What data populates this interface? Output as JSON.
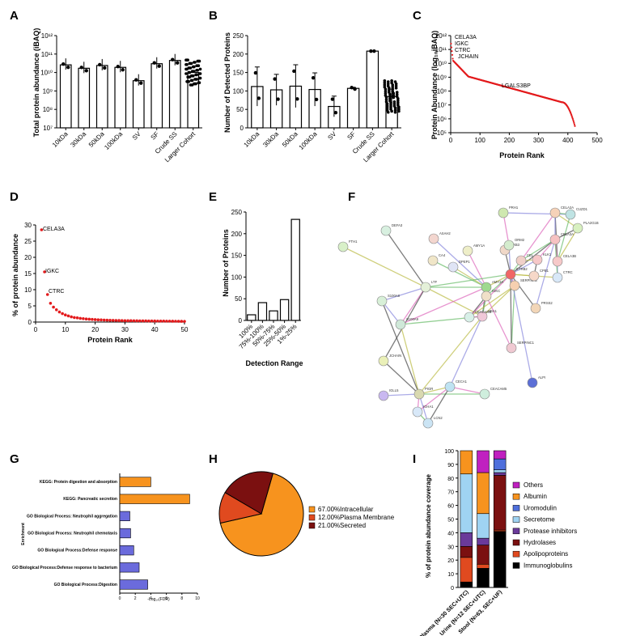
{
  "panels": {
    "A": {
      "label": "A",
      "type": "bar",
      "ylabel": "Total protein abundance (iBAQ)",
      "yscale": "log",
      "ylim": [
        10000000.0,
        1000000000000.0
      ],
      "yticks": [
        "10⁷",
        "10⁸",
        "10⁹",
        "10¹⁰",
        "10¹¹",
        "10¹²"
      ],
      "categories": [
        "10kDa",
        "30kDa",
        "50kDa",
        "100kDa",
        "SV",
        "SF",
        "Crude SS",
        "Larger Cohort"
      ],
      "values": [
        26000000000.0,
        17000000000.0,
        24000000000.0,
        19000000000.0,
        3600000000.0,
        30000000000.0,
        45000000000.0,
        10000000000.0
      ]
    },
    "B": {
      "label": "B",
      "type": "bar",
      "ylabel": "Number of Detected Proteins",
      "ylim": [
        0,
        250
      ],
      "yticks": [
        "0",
        "50",
        "100",
        "150",
        "200",
        "250"
      ],
      "categories": [
        "10kDa",
        "30kDa",
        "50kDa",
        "100kDa",
        "SV",
        "SF",
        "Crude SS",
        "Larger Cohort"
      ],
      "values": [
        112,
        103,
        113,
        104,
        58,
        107,
        208,
        85
      ],
      "errors": [
        53,
        42,
        58,
        45,
        28,
        3,
        0,
        20
      ]
    },
    "C": {
      "label": "C",
      "type": "scatter",
      "xlabel": "Protein Rank",
      "ylabel": "Protein Abundance (log₁₀iBAQ)",
      "xlim": [
        0,
        500
      ],
      "ylim": [
        100000.0,
        1000000000000.0
      ],
      "xticks": [
        "0",
        "100",
        "200",
        "300",
        "400",
        "500"
      ],
      "yticks": [
        "10⁵",
        "10⁶",
        "10⁷",
        "10⁸",
        "10⁹",
        "10¹⁰",
        "10¹¹",
        "10¹²"
      ],
      "annotations": [
        "CELA3A",
        "IGKC",
        "CTRC",
        "JCHAIN",
        "LGALS3BP"
      ]
    },
    "D": {
      "label": "D",
      "type": "scatter",
      "xlabel": "Protein Rank",
      "ylabel": "% of protein abundance",
      "xlim": [
        0,
        50
      ],
      "ylim": [
        0,
        30
      ],
      "xticks": [
        "0",
        "10",
        "20",
        "30",
        "40",
        "50"
      ],
      "yticks": [
        "0",
        "5",
        "10",
        "15",
        "20",
        "25",
        "30"
      ],
      "annotations": [
        "CELA3A",
        "IGKC",
        "CTRC"
      ],
      "x": [
        2,
        3,
        4,
        5,
        6,
        7,
        8,
        9,
        10,
        11,
        12,
        13,
        14,
        15,
        16,
        17,
        18,
        19,
        20,
        21,
        22,
        23,
        24,
        25,
        26,
        27,
        28,
        29,
        30,
        31,
        32,
        33,
        34,
        35,
        36,
        37,
        38,
        39,
        40,
        41,
        42,
        43,
        44,
        45,
        46,
        47,
        48,
        49,
        50
      ],
      "y": [
        28.5,
        15.5,
        8.5,
        5.8,
        4.6,
        3.8,
        3.1,
        2.6,
        2.2,
        1.9,
        1.6,
        1.4,
        1.3,
        1.15,
        1.05,
        0.95,
        0.88,
        0.82,
        0.76,
        0.7,
        0.66,
        0.62,
        0.58,
        0.55,
        0.52,
        0.5,
        0.48,
        0.46,
        0.44,
        0.42,
        0.41,
        0.4,
        0.38,
        0.37,
        0.36,
        0.35,
        0.34,
        0.33,
        0.32,
        0.31,
        0.3,
        0.29,
        0.28,
        0.27,
        0.26,
        0.25,
        0.24,
        0.23,
        0.22
      ]
    },
    "E": {
      "label": "E",
      "type": "bar",
      "xlabel": "Detection Range",
      "ylabel": "Number of Proteins",
      "ylim": [
        0,
        250
      ],
      "yticks": [
        "0",
        "50",
        "100",
        "150",
        "200",
        "250"
      ],
      "categories": [
        "100%",
        "75%-100%",
        "50%-75%",
        "25%-50%",
        "1%-25%"
      ],
      "values": [
        13,
        41,
        22,
        48,
        233
      ]
    },
    "F": {
      "label": "F",
      "nodes": [
        "PRH1",
        "CELA2A",
        "CUZD1",
        "PLA2G1B",
        "CELA3B",
        "CTRC",
        "PRSS2",
        "SERPINA3",
        "SERPINC1",
        "ALPI",
        "CEACAM5",
        "CECA1",
        "PIGR",
        "LCN2",
        "FTH1",
        "DEFA3",
        "ASAH2",
        "AMY1A",
        "CA4",
        "DPEP1",
        "PRB3",
        "LTF",
        "S100A8",
        "S100A9",
        "AMY2A",
        "ORM2",
        "HBA1",
        "JCHAIN",
        "IGLL5",
        "IGHA1",
        "CEL",
        "CPB1",
        "CELA3A",
        "KLK1",
        "CTRB2",
        "CEACAM6",
        "IGKC"
      ]
    },
    "G": {
      "label": "G",
      "type": "bar",
      "xlabel": "-Log₁₀(FDR)",
      "ylabel": "Enrichment",
      "xlim": [
        0,
        10
      ],
      "xticks": [
        "0",
        "2",
        "4",
        "6",
        "8",
        "10"
      ],
      "categories": [
        "KEGG: Protein digestion and absorption",
        "KEGG: Pancreatic secretion",
        "GO Biological Process: Neutrophil aggregation",
        "GO Biological Process: Neutrophil chemotaxis",
        "GO Biological Process:Defense response",
        "GO Biological Process:Defense response to bacterium",
        "GO Biological Process:Digestion"
      ],
      "values": [
        4.0,
        9.0,
        1.3,
        1.4,
        1.8,
        2.5,
        3.6
      ],
      "colors": [
        "#f7931e",
        "#f7931e",
        "#6b6bdc",
        "#6b6bdc",
        "#6b6bdc",
        "#6b6bdc",
        "#6b6bdc"
      ]
    },
    "H": {
      "label": "H",
      "type": "pie",
      "slices": [
        {
          "pct": "67.00%",
          "name": "Intracellular",
          "value": 67.0,
          "color": "#f7931e"
        },
        {
          "pct": "12.00%",
          "name": "Plasma Membrane",
          "value": 12.0,
          "color": "#e04a1f"
        },
        {
          "pct": "21.00%",
          "name": "Secreted",
          "value": 21.0,
          "color": "#7b1010"
        }
      ]
    },
    "I": {
      "label": "I",
      "type": "bar",
      "ylabel": "% of protein abundance coverage",
      "ylim": [
        0,
        100
      ],
      "yticks": [
        "0",
        "10",
        "20",
        "30",
        "40",
        "50",
        "60",
        "70",
        "80",
        "90",
        "100"
      ],
      "categories": [
        "Plasma (N=30 SEC+UTC)",
        "Urine (N=12 SEC+UTC)",
        "Stool (N=63, SEC+UF)"
      ],
      "legend": [
        "Others",
        "Albumin",
        "Uromodulin",
        "Secretome",
        "Protease inhibitors",
        "Hydrolases",
        "Apolipoproteins",
        "Immunoglobulins"
      ],
      "legend_colors": [
        "#c020c0",
        "#f7931e",
        "#4f6fdc",
        "#9fd3f2",
        "#6a3a9a",
        "#7b1010",
        "#e04a1f",
        "#000000"
      ],
      "series": [
        {
          "name": "Immunoglobulins",
          "values": [
            4,
            14,
            41
          ]
        },
        {
          "name": "Apolipoproteins",
          "values": [
            18,
            3,
            1
          ]
        },
        {
          "name": "Hydrolases",
          "values": [
            8,
            14,
            40
          ]
        },
        {
          "name": "Protease inhibitors",
          "values": [
            10,
            5,
            2
          ]
        },
        {
          "name": "Secretome",
          "values": [
            43,
            18,
            2
          ]
        },
        {
          "name": "Uromodulin",
          "values": [
            0,
            0,
            8
          ]
        },
        {
          "name": "Albumin",
          "values": [
            17,
            30,
            0
          ]
        },
        {
          "name": "Others",
          "values": [
            0,
            16,
            6
          ]
        }
      ]
    }
  }
}
